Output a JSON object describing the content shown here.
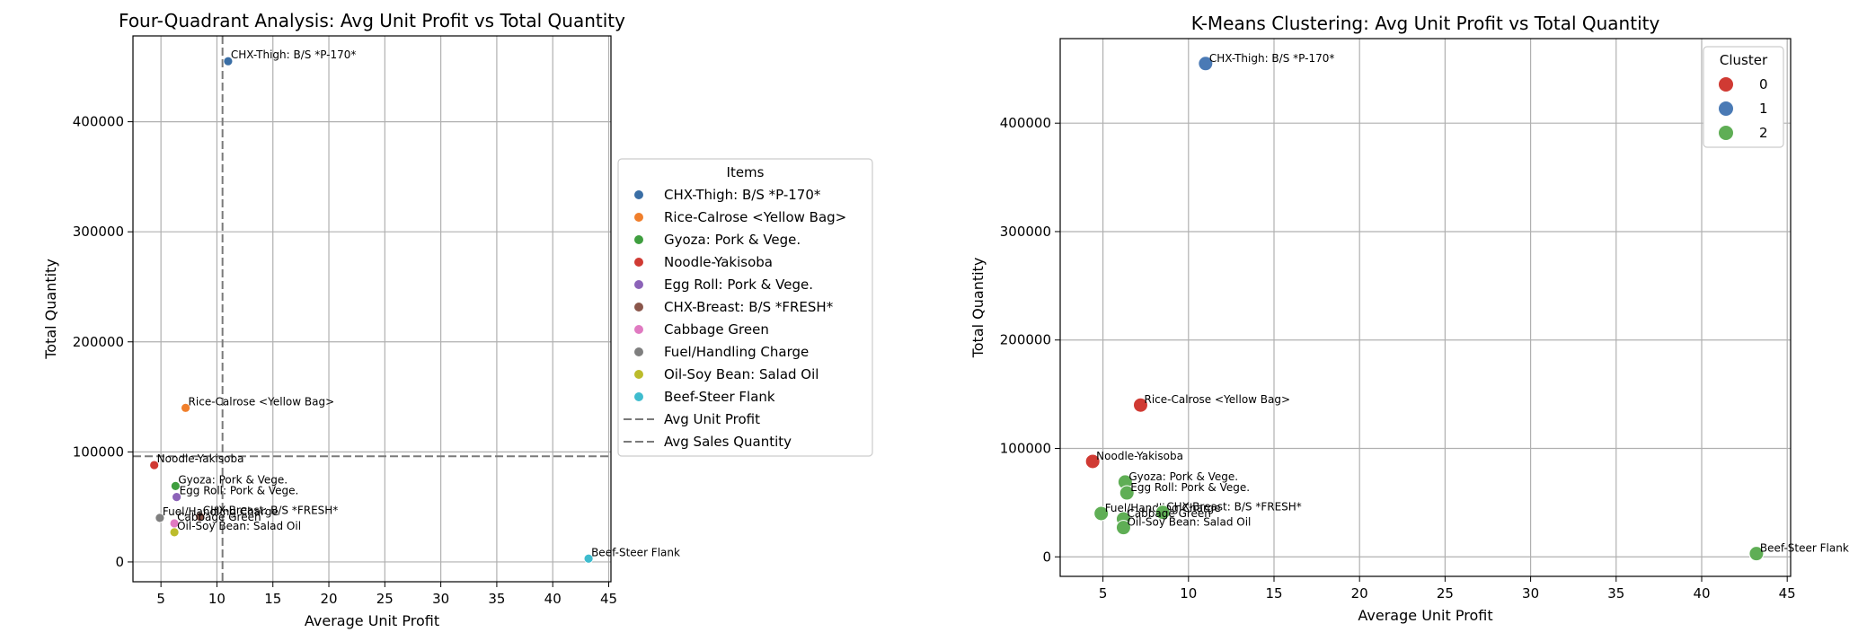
{
  "chart_data": [
    {
      "type": "scatter",
      "title": "Four-Quadrant Analysis: Avg Unit Profit vs Total Quantity",
      "xlabel": "Average Unit Profit",
      "ylabel": "Total Quantity",
      "xlim": [
        2.5,
        45.2
      ],
      "ylim": [
        -18000,
        478000
      ],
      "xticks": [
        5,
        10,
        15,
        20,
        25,
        30,
        35,
        40,
        45
      ],
      "yticks": [
        0,
        100000,
        200000,
        300000,
        400000
      ],
      "grid": true,
      "legend": {
        "title": "Items",
        "placement": "outside-right",
        "line_entries": [
          "Avg Unit Profit",
          "Avg Sales Quantity"
        ]
      },
      "reference_lines": {
        "avg_unit_profit": 10.5,
        "avg_sales_quantity": 96000
      },
      "series": [
        {
          "name": "CHX-Thigh: B/S *P-170*",
          "color": "#3a6ea5",
          "x": 11.0,
          "y": 455000
        },
        {
          "name": "Rice-Calrose <Yellow Bag>",
          "color": "#f07f2c",
          "x": 7.2,
          "y": 140000
        },
        {
          "name": "Gyoza: Pork & Vege.",
          "color": "#3f9e3f",
          "x": 6.3,
          "y": 69000
        },
        {
          "name": "Noodle-Yakisoba",
          "color": "#d03a33",
          "x": 4.4,
          "y": 88000
        },
        {
          "name": "Egg Roll: Pork & Vege.",
          "color": "#8c63b8",
          "x": 6.4,
          "y": 59000
        },
        {
          "name": "CHX-Breast: B/S  *FRESH*",
          "color": "#8a564b",
          "x": 8.5,
          "y": 41000
        },
        {
          "name": "Cabbage Green",
          "color": "#e07ac1",
          "x": 6.2,
          "y": 35000
        },
        {
          "name": "Fuel/Handling Charge",
          "color": "#7f7f7f",
          "x": 4.9,
          "y": 40000
        },
        {
          "name": "Oil-Soy Bean: Salad Oil",
          "color": "#bcbc2c",
          "x": 6.2,
          "y": 27000
        },
        {
          "name": "Beef-Steer Flank",
          "color": "#3fbcce",
          "x": 43.2,
          "y": 3000
        }
      ]
    },
    {
      "type": "scatter",
      "title": "K-Means Clustering: Avg Unit Profit vs Total Quantity",
      "xlabel": "Average Unit Profit",
      "ylabel": "Total Quantity",
      "xlim": [
        2.5,
        45.2
      ],
      "ylim": [
        -18000,
        478000
      ],
      "xticks": [
        5,
        10,
        15,
        20,
        25,
        30,
        35,
        40,
        45
      ],
      "yticks": [
        0,
        100000,
        200000,
        300000,
        400000
      ],
      "grid": true,
      "legend": {
        "title": "Cluster",
        "placement": "top-right"
      },
      "clusters": [
        {
          "name": "0",
          "color": "#d03a33"
        },
        {
          "name": "1",
          "color": "#4a7ab5"
        },
        {
          "name": "2",
          "color": "#5fae55"
        }
      ],
      "points": [
        {
          "label": "CHX-Thigh: B/S *P-170*",
          "x": 11.0,
          "y": 455000,
          "cluster": 1
        },
        {
          "label": "Rice-Calrose <Yellow Bag>",
          "x": 7.2,
          "y": 140000,
          "cluster": 0
        },
        {
          "label": "Noodle-Yakisoba",
          "x": 4.4,
          "y": 88000,
          "cluster": 0
        },
        {
          "label": "Gyoza: Pork & Vege.",
          "x": 6.3,
          "y": 69000,
          "cluster": 2
        },
        {
          "label": "Egg Roll: Pork & Vege.",
          "x": 6.4,
          "y": 59000,
          "cluster": 2
        },
        {
          "label": "Fuel/Handling Charge",
          "x": 4.9,
          "y": 40000,
          "cluster": 2
        },
        {
          "label": "CHX-Breast: B/S  *FRESH*",
          "x": 8.5,
          "y": 41000,
          "cluster": 2
        },
        {
          "label": "Cabbage Green",
          "x": 6.2,
          "y": 35000,
          "cluster": 2
        },
        {
          "label": "Oil-Soy Bean: Salad Oil",
          "x": 6.2,
          "y": 27000,
          "cluster": 2
        },
        {
          "label": "Beef-Steer Flank",
          "x": 43.2,
          "y": 3000,
          "cluster": 2
        }
      ]
    }
  ]
}
